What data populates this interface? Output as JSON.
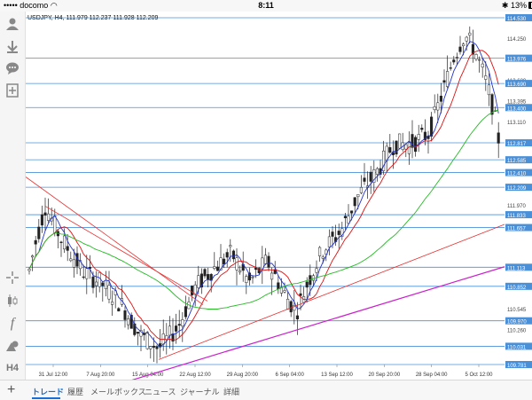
{
  "status": {
    "carrier": "docomo",
    "time": "8:11",
    "battery": "13%"
  },
  "chart": {
    "header": "USDJPY, H4, 111.979 112.237 111.928 112.209",
    "price_labels": [
      {
        "text": "114.530",
        "hl": true,
        "price": 114.53
      },
      {
        "text": "114.250",
        "hl": false,
        "price": 114.25
      },
      {
        "text": "113.976",
        "hl": true,
        "price": 113.976
      },
      {
        "text": "113.680",
        "hl": false,
        "price": 113.68
      },
      {
        "text": "113.690",
        "hl": true,
        "price": 113.63
      },
      {
        "text": "113.395",
        "hl": false,
        "price": 113.395
      },
      {
        "text": "113.400",
        "hl": true,
        "price": 113.3
      },
      {
        "text": "113.110",
        "hl": false,
        "price": 113.11
      },
      {
        "text": "112.817",
        "hl": true,
        "price": 112.817
      },
      {
        "text": "112.585",
        "hl": true,
        "price": 112.585
      },
      {
        "text": "112.410",
        "hl": true,
        "price": 112.41
      },
      {
        "text": "112.209",
        "hl": true,
        "price": 112.209
      },
      {
        "text": "111.970",
        "hl": false,
        "price": 111.97
      },
      {
        "text": "111.833",
        "hl": true,
        "price": 111.833
      },
      {
        "text": "111.657",
        "hl": true,
        "price": 111.657
      },
      {
        "text": "111.113",
        "hl": true,
        "price": 111.113
      },
      {
        "text": "110.852",
        "hl": true,
        "price": 110.852
      },
      {
        "text": "110.545",
        "hl": false,
        "price": 110.545
      },
      {
        "text": "110.260",
        "hl": false,
        "price": 110.26
      },
      {
        "text": "109.970",
        "hl": true,
        "price": 110.38
      },
      {
        "text": "110.031",
        "hl": true,
        "price": 110.031
      },
      {
        "text": "109.781",
        "hl": true,
        "price": 109.781
      }
    ],
    "date_labels": [
      "31 Jul 12:00",
      "7 Aug 20:00",
      "15 Aug 04:00",
      "22 Aug 12:00",
      "29 Aug 20:00",
      "6 Sep 04:00",
      "13 Sep 12:00",
      "20 Sep 20:00",
      "28 Sep 04:00",
      "5 Oct 12:00"
    ],
    "colors": {
      "hline": "#4a90d9",
      "candle": "#222222",
      "ma_fast": "#2233cc",
      "ma_mid": "#dd1111",
      "ma_slow": "#22bb22",
      "trend_red": "#e83030",
      "trend_magenta": "#cc22cc",
      "label_bg": "#4a90d9"
    }
  },
  "left_toolbar": [
    "person-icon",
    "download-icon",
    "chat-icon",
    "add-icon",
    "crosshair-icon",
    "candles-icon",
    "function-icon",
    "objects-icon",
    "timeframe"
  ],
  "timeframe": "H4",
  "tabs": [
    {
      "label": "トレード",
      "active": true
    },
    {
      "label": "履歴",
      "active": false
    },
    {
      "label": "メールボックス",
      "active": false
    },
    {
      "label": "ニュース",
      "active": false
    },
    {
      "label": "ジャーナル",
      "active": false
    },
    {
      "label": "詳細",
      "active": false
    }
  ]
}
